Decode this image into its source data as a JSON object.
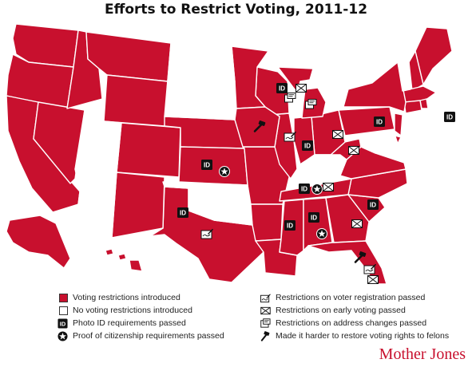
{
  "title": "Efforts to Restrict Voting, 2011-12",
  "colors": {
    "restricted": "#c8102e",
    "none": "#ffffff",
    "border": "#555555",
    "icon": "#111111"
  },
  "legend": {
    "restricted_label": "Voting restrictions introduced",
    "none_label": "No voting restrictions introduced",
    "photo_id_label": "Photo ID requirements passed",
    "citizenship_label": "Proof of citizenship requirements passed",
    "registration_label": "Restrictions on voter registration passed",
    "early_voting_label": "Restrictions on early voting passed",
    "address_label": "Restrictions on address changes passed",
    "felons_label": "Made it harder to restore voting rights to felons",
    "photo_id_icon_text": "ID"
  },
  "icons": {
    "photo_id": "id-card-icon",
    "citizenship": "star-circle-icon",
    "registration": "pen-writing-icon",
    "early_voting": "envelope-x-icon",
    "address": "address-card-icon",
    "felons": "gavel-icon"
  },
  "states": {
    "restricted": [
      "WA",
      "OR",
      "CA",
      "NV",
      "ID",
      "MT",
      "WY",
      "CO",
      "NE",
      "KS",
      "MO",
      "TX",
      "NM",
      "AR",
      "LA",
      "MS",
      "AL",
      "GA",
      "FL",
      "SC",
      "NC",
      "TN",
      "VA",
      "WV",
      "PA",
      "OH",
      "IN",
      "IL",
      "WI",
      "MN",
      "IA",
      "ME",
      "NH",
      "MA",
      "RI",
      "CT",
      "NJ",
      "NY",
      "AK",
      "HI",
      "MI",
      "DE"
    ],
    "none": [
      "ND",
      "SD",
      "UT",
      "AZ",
      "OK",
      "KY",
      "VT",
      "MD"
    ]
  },
  "markers": {
    "WI": [
      "photo_id",
      "address",
      "early_voting"
    ],
    "MI": [
      "address"
    ],
    "IA": [
      "felons"
    ],
    "IL": [
      "registration"
    ],
    "OH": [
      "early_voting"
    ],
    "PA": [
      "photo_id"
    ],
    "WV": [
      "early_voting"
    ],
    "RI": [
      "photo_id"
    ],
    "KS": [
      "photo_id",
      "citizenship"
    ],
    "TN": [
      "photo_id",
      "citizenship",
      "early_voting"
    ],
    "TX": [
      "photo_id",
      "registration"
    ],
    "MS": [
      "photo_id"
    ],
    "AL": [
      "photo_id",
      "citizenship"
    ],
    "GA": [
      "early_voting"
    ],
    "SC": [
      "photo_id"
    ],
    "FL": [
      "felons",
      "registration",
      "early_voting"
    ],
    "IN": [
      "photo_id"
    ]
  },
  "brand": "Mother Jones"
}
